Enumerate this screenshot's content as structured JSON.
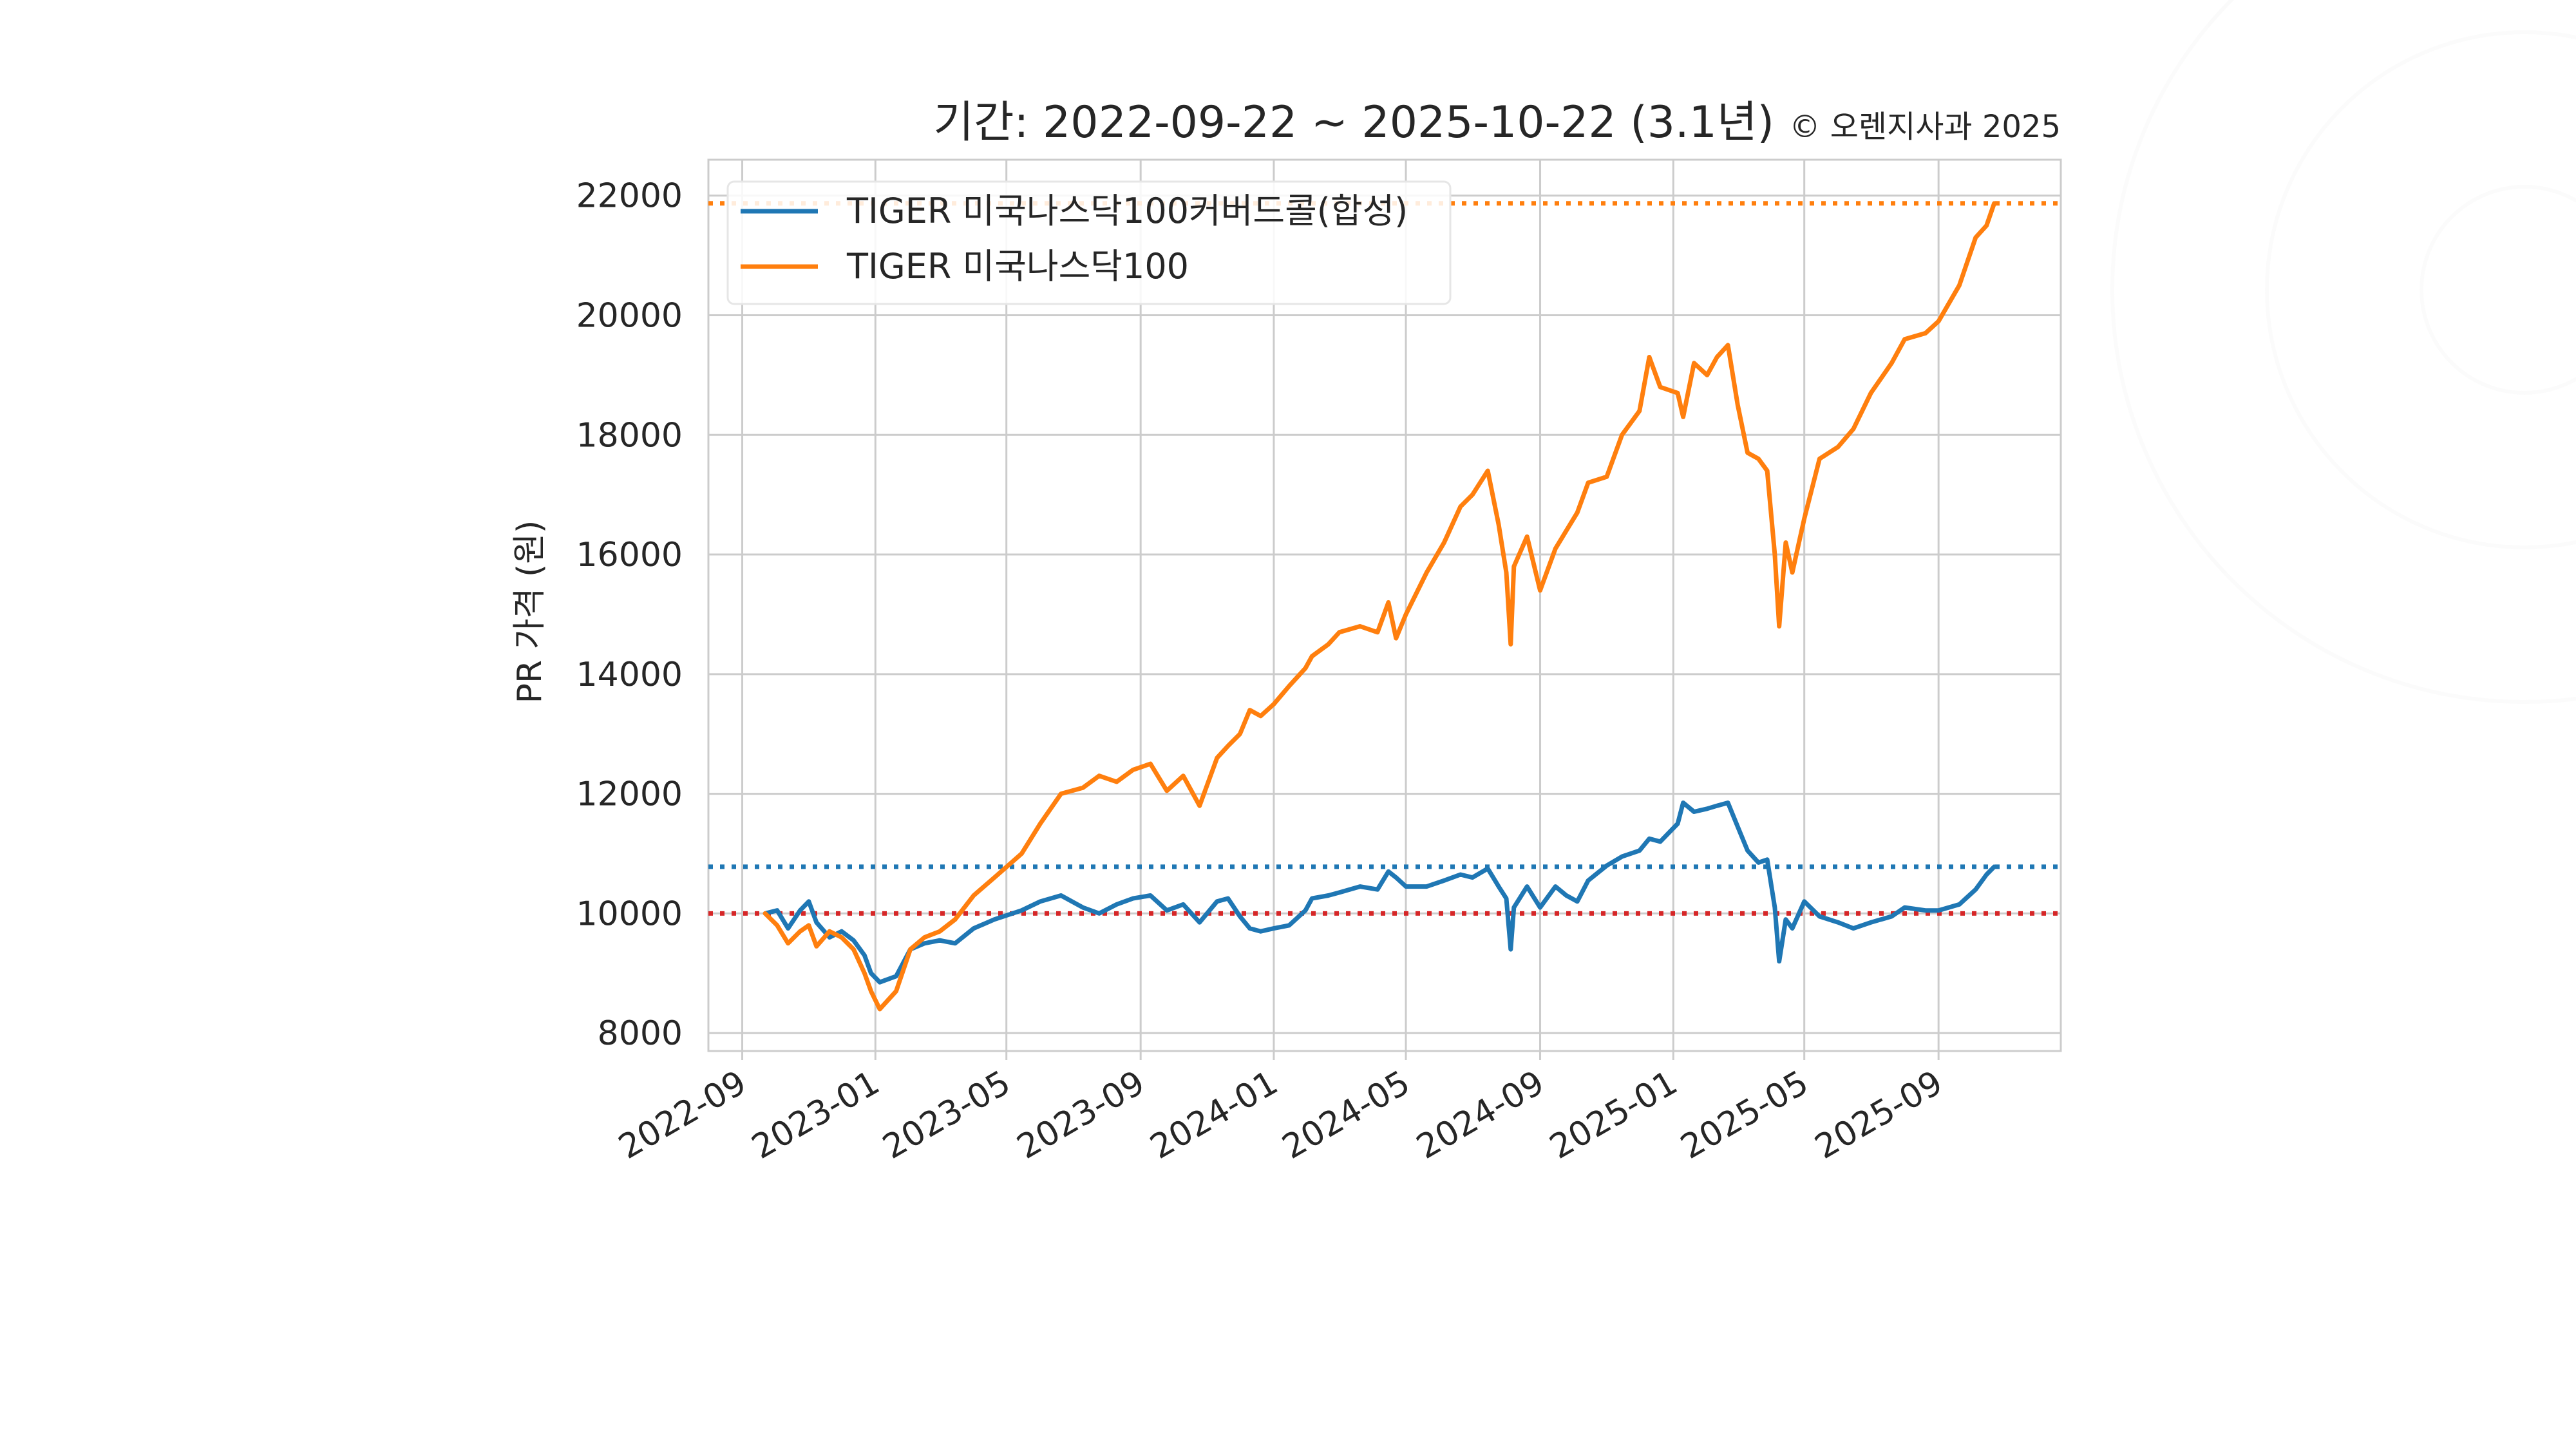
{
  "chart_data": {
    "type": "line",
    "title": "기간: 2022-09-22 ~ 2025-10-22 (3.1년)",
    "copyright": "© 오렌지사과 2025",
    "ylabel": "PR 가격 (원)",
    "xlabel": "",
    "ylim": [
      7700,
      22600
    ],
    "xlim": [
      "2022-08-01",
      "2025-12-22"
    ],
    "grid": true,
    "legend_position": "upper-left",
    "yticks": [
      "8000",
      "10000",
      "12000",
      "14000",
      "16000",
      "18000",
      "20000",
      "22000"
    ],
    "xticks": [
      {
        "label": "2022-09",
        "date": "2022-09-01"
      },
      {
        "label": "2023-01",
        "date": "2023-01-01"
      },
      {
        "label": "2023-05",
        "date": "2023-05-01"
      },
      {
        "label": "2023-09",
        "date": "2023-09-01"
      },
      {
        "label": "2024-01",
        "date": "2024-01-01"
      },
      {
        "label": "2024-05",
        "date": "2024-05-01"
      },
      {
        "label": "2024-09",
        "date": "2024-09-01"
      },
      {
        "label": "2025-01",
        "date": "2025-01-01"
      },
      {
        "label": "2025-05",
        "date": "2025-05-01"
      },
      {
        "label": "2025-09",
        "date": "2025-09-01"
      }
    ],
    "hlines": [
      {
        "value": 21870,
        "color": "#ff7f0e",
        "style": "dotted"
      },
      {
        "value": 10780,
        "color": "#1f77b4",
        "style": "dotted"
      },
      {
        "value": 10000,
        "color": "#d62728",
        "style": "dotted"
      }
    ],
    "series": [
      {
        "name": "TIGER 미국나스닥100커버드콜(합성)",
        "color": "#1f77b4",
        "points": [
          [
            "2022-09-22",
            10000
          ],
          [
            "2022-10-03",
            10050
          ],
          [
            "2022-10-13",
            9750
          ],
          [
            "2022-10-24",
            10050
          ],
          [
            "2022-11-01",
            10200
          ],
          [
            "2022-11-08",
            9850
          ],
          [
            "2022-11-20",
            9600
          ],
          [
            "2022-12-01",
            9700
          ],
          [
            "2022-12-12",
            9550
          ],
          [
            "2022-12-22",
            9300
          ],
          [
            "2022-12-28",
            9000
          ],
          [
            "2023-01-05",
            8850
          ],
          [
            "2023-01-20",
            8950
          ],
          [
            "2023-02-02",
            9400
          ],
          [
            "2023-02-15",
            9500
          ],
          [
            "2023-03-01",
            9550
          ],
          [
            "2023-03-15",
            9500
          ],
          [
            "2023-04-01",
            9750
          ],
          [
            "2023-04-20",
            9900
          ],
          [
            "2023-05-15",
            10050
          ],
          [
            "2023-06-01",
            10200
          ],
          [
            "2023-06-20",
            10300
          ],
          [
            "2023-07-10",
            10100
          ],
          [
            "2023-07-25",
            10000
          ],
          [
            "2023-08-10",
            10150
          ],
          [
            "2023-08-25",
            10250
          ],
          [
            "2023-09-10",
            10300
          ],
          [
            "2023-09-25",
            10050
          ],
          [
            "2023-10-10",
            10150
          ],
          [
            "2023-10-25",
            9850
          ],
          [
            "2023-11-10",
            10200
          ],
          [
            "2023-11-20",
            10250
          ],
          [
            "2023-12-01",
            9950
          ],
          [
            "2023-12-10",
            9750
          ],
          [
            "2023-12-20",
            9700
          ],
          [
            "2024-01-01",
            9750
          ],
          [
            "2024-01-15",
            9800
          ],
          [
            "2024-01-30",
            10050
          ],
          [
            "2024-02-05",
            10250
          ],
          [
            "2024-02-20",
            10300
          ],
          [
            "2024-03-01",
            10350
          ],
          [
            "2024-03-20",
            10450
          ],
          [
            "2024-04-05",
            10400
          ],
          [
            "2024-04-15",
            10700
          ],
          [
            "2024-04-22",
            10600
          ],
          [
            "2024-05-01",
            10450
          ],
          [
            "2024-05-20",
            10450
          ],
          [
            "2024-06-05",
            10550
          ],
          [
            "2024-06-20",
            10650
          ],
          [
            "2024-07-01",
            10600
          ],
          [
            "2024-07-15",
            10750
          ],
          [
            "2024-07-25",
            10450
          ],
          [
            "2024-08-01",
            10250
          ],
          [
            "2024-08-05",
            9400
          ],
          [
            "2024-08-08",
            10100
          ],
          [
            "2024-08-20",
            10450
          ],
          [
            "2024-09-01",
            10100
          ],
          [
            "2024-09-15",
            10450
          ],
          [
            "2024-09-25",
            10300
          ],
          [
            "2024-10-05",
            10200
          ],
          [
            "2024-10-15",
            10550
          ],
          [
            "2024-11-01",
            10800
          ],
          [
            "2024-11-15",
            10950
          ],
          [
            "2024-12-01",
            11050
          ],
          [
            "2024-12-10",
            11250
          ],
          [
            "2024-12-20",
            11200
          ],
          [
            "2025-01-05",
            11500
          ],
          [
            "2025-01-10",
            11850
          ],
          [
            "2025-01-20",
            11700
          ],
          [
            "2025-02-01",
            11750
          ],
          [
            "2025-02-10",
            11800
          ],
          [
            "2025-02-20",
            11850
          ],
          [
            "2025-03-01",
            11450
          ],
          [
            "2025-03-10",
            11050
          ],
          [
            "2025-03-20",
            10850
          ],
          [
            "2025-03-28",
            10900
          ],
          [
            "2025-04-04",
            10100
          ],
          [
            "2025-04-08",
            9200
          ],
          [
            "2025-04-14",
            9900
          ],
          [
            "2025-04-20",
            9750
          ],
          [
            "2025-05-01",
            10200
          ],
          [
            "2025-05-15",
            9950
          ],
          [
            "2025-06-01",
            9850
          ],
          [
            "2025-06-15",
            9750
          ],
          [
            "2025-07-01",
            9850
          ],
          [
            "2025-07-20",
            9950
          ],
          [
            "2025-08-01",
            10100
          ],
          [
            "2025-08-20",
            10050
          ],
          [
            "2025-09-01",
            10050
          ],
          [
            "2025-09-20",
            10150
          ],
          [
            "2025-10-05",
            10400
          ],
          [
            "2025-10-15",
            10650
          ],
          [
            "2025-10-22",
            10780
          ]
        ]
      },
      {
        "name": "TIGER 미국나스닥100",
        "color": "#ff7f0e",
        "points": [
          [
            "2022-09-22",
            10000
          ],
          [
            "2022-10-03",
            9800
          ],
          [
            "2022-10-13",
            9500
          ],
          [
            "2022-10-24",
            9700
          ],
          [
            "2022-11-01",
            9800
          ],
          [
            "2022-11-08",
            9450
          ],
          [
            "2022-11-20",
            9700
          ],
          [
            "2022-12-01",
            9600
          ],
          [
            "2022-12-12",
            9400
          ],
          [
            "2022-12-22",
            9000
          ],
          [
            "2022-12-28",
            8700
          ],
          [
            "2023-01-05",
            8400
          ],
          [
            "2023-01-20",
            8700
          ],
          [
            "2023-02-02",
            9400
          ],
          [
            "2023-02-15",
            9600
          ],
          [
            "2023-03-01",
            9700
          ],
          [
            "2023-03-15",
            9900
          ],
          [
            "2023-04-01",
            10300
          ],
          [
            "2023-04-20",
            10600
          ],
          [
            "2023-05-15",
            11000
          ],
          [
            "2023-06-01",
            11500
          ],
          [
            "2023-06-20",
            12000
          ],
          [
            "2023-07-10",
            12100
          ],
          [
            "2023-07-25",
            12300
          ],
          [
            "2023-08-10",
            12200
          ],
          [
            "2023-08-25",
            12400
          ],
          [
            "2023-09-10",
            12500
          ],
          [
            "2023-09-25",
            12050
          ],
          [
            "2023-10-10",
            12300
          ],
          [
            "2023-10-25",
            11800
          ],
          [
            "2023-11-10",
            12600
          ],
          [
            "2023-11-20",
            12800
          ],
          [
            "2023-12-01",
            13000
          ],
          [
            "2023-12-10",
            13400
          ],
          [
            "2023-12-20",
            13300
          ],
          [
            "2024-01-01",
            13500
          ],
          [
            "2024-01-15",
            13800
          ],
          [
            "2024-01-30",
            14100
          ],
          [
            "2024-02-05",
            14300
          ],
          [
            "2024-02-20",
            14500
          ],
          [
            "2024-03-01",
            14700
          ],
          [
            "2024-03-20",
            14800
          ],
          [
            "2024-04-05",
            14700
          ],
          [
            "2024-04-15",
            15200
          ],
          [
            "2024-04-22",
            14600
          ],
          [
            "2024-05-01",
            15000
          ],
          [
            "2024-05-20",
            15700
          ],
          [
            "2024-06-05",
            16200
          ],
          [
            "2024-06-20",
            16800
          ],
          [
            "2024-07-01",
            17000
          ],
          [
            "2024-07-15",
            17400
          ],
          [
            "2024-07-25",
            16500
          ],
          [
            "2024-08-01",
            15700
          ],
          [
            "2024-08-05",
            14500
          ],
          [
            "2024-08-08",
            15800
          ],
          [
            "2024-08-20",
            16300
          ],
          [
            "2024-09-01",
            15400
          ],
          [
            "2024-09-15",
            16100
          ],
          [
            "2024-09-25",
            16400
          ],
          [
            "2024-10-05",
            16700
          ],
          [
            "2024-10-15",
            17200
          ],
          [
            "2024-11-01",
            17300
          ],
          [
            "2024-11-15",
            18000
          ],
          [
            "2024-12-01",
            18400
          ],
          [
            "2024-12-10",
            19300
          ],
          [
            "2024-12-20",
            18800
          ],
          [
            "2025-01-05",
            18700
          ],
          [
            "2025-01-10",
            18300
          ],
          [
            "2025-01-20",
            19200
          ],
          [
            "2025-02-01",
            19000
          ],
          [
            "2025-02-10",
            19300
          ],
          [
            "2025-02-20",
            19500
          ],
          [
            "2025-03-01",
            18500
          ],
          [
            "2025-03-10",
            17700
          ],
          [
            "2025-03-20",
            17600
          ],
          [
            "2025-03-28",
            17400
          ],
          [
            "2025-04-04",
            16000
          ],
          [
            "2025-04-08",
            14800
          ],
          [
            "2025-04-14",
            16200
          ],
          [
            "2025-04-20",
            15700
          ],
          [
            "2025-05-01",
            16600
          ],
          [
            "2025-05-15",
            17600
          ],
          [
            "2025-06-01",
            17800
          ],
          [
            "2025-06-15",
            18100
          ],
          [
            "2025-07-01",
            18700
          ],
          [
            "2025-07-20",
            19200
          ],
          [
            "2025-08-01",
            19600
          ],
          [
            "2025-08-20",
            19700
          ],
          [
            "2025-09-01",
            19900
          ],
          [
            "2025-09-20",
            20500
          ],
          [
            "2025-10-05",
            21300
          ],
          [
            "2025-10-15",
            21500
          ],
          [
            "2025-10-22",
            21870
          ]
        ]
      }
    ]
  }
}
